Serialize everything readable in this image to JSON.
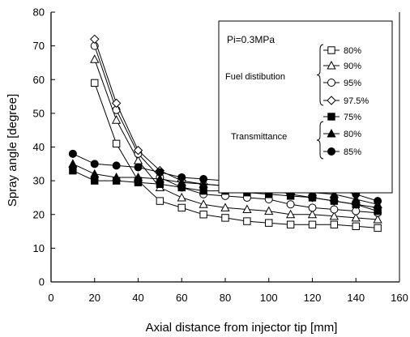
{
  "chart_data": {
    "type": "line",
    "title": "",
    "xlabel": "Axial distance from injector tip [mm]",
    "ylabel": "Spray angle [degree]",
    "xlim": [
      0,
      160
    ],
    "ylim": [
      0,
      80
    ],
    "xticks": [
      0,
      20,
      40,
      60,
      80,
      100,
      120,
      140,
      160
    ],
    "yticks": [
      0,
      10,
      20,
      30,
      40,
      50,
      60,
      70,
      80
    ],
    "grid": false,
    "legend_position": "top-right",
    "annotation": "Pi=0.3MPa",
    "groups": [
      {
        "name": "Fuel distibution",
        "series_indices": [
          0,
          1,
          2,
          3
        ]
      },
      {
        "name": "Transmittance",
        "series_indices": [
          4,
          5,
          6
        ]
      }
    ],
    "series": [
      {
        "name": "80%",
        "marker": "square-open",
        "color": "#000000",
        "x": [
          20,
          30,
          40,
          50,
          60,
          70,
          80,
          90,
          100,
          110,
          120,
          130,
          140,
          150
        ],
        "y": [
          59,
          41,
          30,
          24,
          22,
          20,
          19,
          18,
          17.5,
          17,
          17,
          17,
          16.5,
          16
        ]
      },
      {
        "name": "90%",
        "marker": "triangle-open",
        "color": "#000000",
        "x": [
          20,
          30,
          40,
          50,
          60,
          70,
          80,
          90,
          100,
          110,
          120,
          130,
          140,
          150
        ],
        "y": [
          66,
          48,
          36,
          28,
          25,
          23,
          22,
          21.5,
          21,
          20,
          20,
          19.5,
          19,
          18.5
        ]
      },
      {
        "name": "95%",
        "marker": "circle-open",
        "color": "#000000",
        "x": [
          20,
          30,
          40,
          50,
          60,
          70,
          80,
          90,
          100,
          110,
          120,
          130,
          140,
          150
        ],
        "y": [
          70,
          51,
          38,
          31,
          28,
          26,
          25.5,
          25,
          24.5,
          23,
          22,
          21.5,
          21,
          20.5
        ]
      },
      {
        "name": "97.5%",
        "marker": "diamond-open",
        "color": "#000000",
        "x": [
          20,
          30,
          40,
          50,
          60,
          70,
          80,
          90,
          100,
          110,
          120,
          130,
          140,
          150
        ],
        "y": [
          72,
          53,
          39,
          33,
          30,
          29,
          28.5,
          28,
          27.5,
          26,
          25,
          24,
          23,
          22
        ]
      },
      {
        "name": "75%",
        "marker": "square-filled",
        "color": "#000000",
        "x": [
          10,
          20,
          30,
          40,
          50,
          60,
          70,
          80,
          90,
          100,
          110,
          120,
          130,
          140,
          150
        ],
        "y": [
          33,
          30,
          30,
          29.5,
          29,
          28,
          27,
          27,
          26.5,
          26,
          25.5,
          25,
          24,
          23,
          21
        ]
      },
      {
        "name": "80%",
        "marker": "triangle-filled",
        "color": "#000000",
        "x": [
          10,
          20,
          30,
          40,
          50,
          60,
          70,
          80,
          90,
          100,
          110,
          120,
          130,
          140,
          150
        ],
        "y": [
          35,
          32,
          31,
          31,
          30.5,
          29.5,
          29,
          28.5,
          28,
          27.5,
          27,
          26.5,
          26,
          24.5,
          23
        ]
      },
      {
        "name": "85%",
        "marker": "circle-filled",
        "color": "#000000",
        "x": [
          10,
          20,
          30,
          40,
          50,
          60,
          70,
          80,
          90,
          100,
          110,
          120,
          130,
          140,
          150
        ],
        "y": [
          38,
          35,
          34.5,
          34,
          32.5,
          31,
          30.5,
          30,
          29.5,
          29,
          29,
          28.5,
          27.5,
          26,
          24
        ]
      }
    ]
  }
}
